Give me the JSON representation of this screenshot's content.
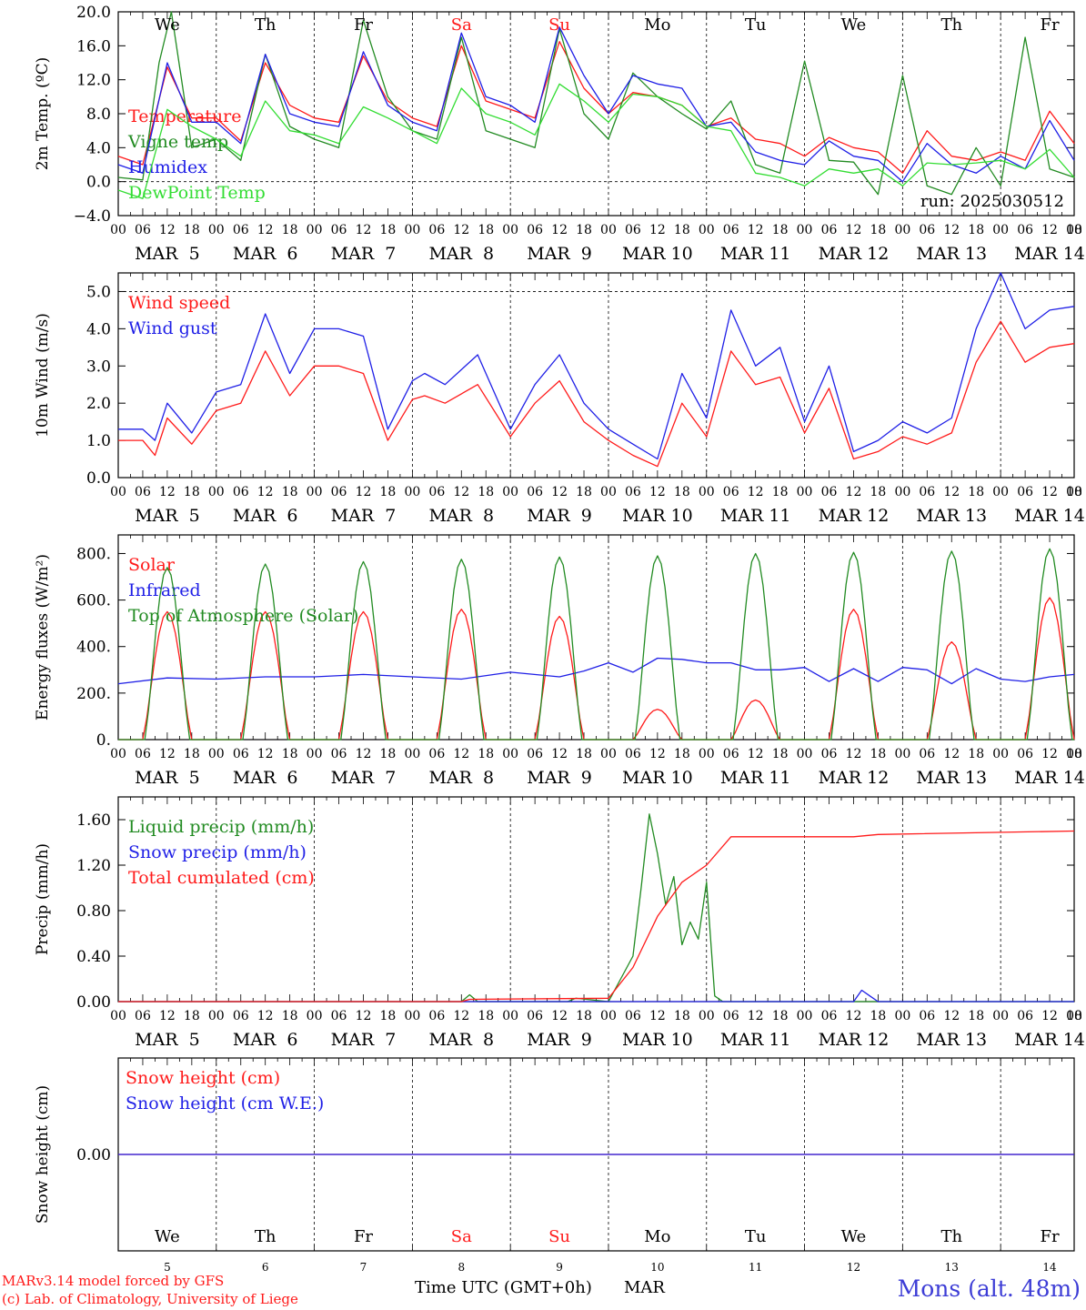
{
  "colors": {
    "red": "#ff1a1a",
    "dkgreen": "#228b22",
    "blue": "#1f1fe6",
    "ltgreen": "#33dd33",
    "brand_blue": "#3d3dd6"
  },
  "x_axis": {
    "hour_ticks": [
      "00",
      "06",
      "12",
      "18"
    ],
    "last_tick": "00",
    "date_labels": [
      "MAR  5",
      "MAR  6",
      "MAR  7",
      "MAR  8",
      "MAR  9",
      "MAR 10",
      "MAR 11",
      "MAR 12",
      "MAR 13",
      "MAR 14"
    ],
    "weekdays": [
      "We",
      "Th",
      "Fr",
      "Sa",
      "Su",
      "Mo",
      "Tu",
      "We",
      "Th",
      "Fr"
    ],
    "weekday_colors": [
      "#000000",
      "#000000",
      "#000000",
      "#ff1a1a",
      "#ff1a1a",
      "#000000",
      "#000000",
      "#000000",
      "#000000",
      "#000000"
    ],
    "day_numbers": [
      "5",
      "6",
      "7",
      "8",
      "9",
      "10",
      "11",
      "12",
      "13",
      "14"
    ],
    "axis_title": "Time UTC (GMT+0h)",
    "month": "MAR"
  },
  "footer": {
    "model_line": "MARv3.14 model forced by GFS",
    "copyright_line": "(c) Lab. of Climatology, University of Liege",
    "station": "Mons (alt. 48m)"
  },
  "chart_data": [
    {
      "id": "temp",
      "type": "line",
      "ylabel": "2m Temp. (ºC)",
      "ylim": [
        -4,
        20
      ],
      "yticks": [
        "20.0",
        "16.0",
        "12.0",
        "8.0",
        "4.0",
        "0.0",
        "−4.0"
      ],
      "annotation": "run: 2025030512",
      "series": [
        {
          "name": "Temperature",
          "color": "#ff1a1a",
          "x_hours": [
            0,
            6,
            12,
            18,
            24,
            30,
            36,
            42,
            48,
            54,
            60,
            66,
            72,
            78,
            84,
            90,
            96,
            102,
            108,
            114,
            120,
            126,
            132,
            138,
            144,
            150,
            156,
            162,
            168,
            174,
            180,
            186,
            192,
            198,
            204,
            210,
            216,
            222,
            228,
            234
          ],
          "values": [
            3,
            2,
            13.5,
            7.5,
            7.5,
            4.8,
            14,
            9,
            7.5,
            7,
            14.8,
            9.5,
            7.5,
            6.5,
            16,
            9.5,
            8.5,
            7.5,
            16.5,
            11,
            8,
            10.5,
            10,
            9,
            6.5,
            7.5,
            5,
            4.5,
            3,
            5.2,
            4,
            3.5,
            1,
            6,
            3,
            2.5,
            3.5,
            2.5,
            8.3,
            4.5
          ]
        },
        {
          "name": "Vigne temp",
          "color": "#228b22",
          "x_hours": [
            0,
            6,
            10,
            13,
            18,
            24,
            30,
            36,
            42,
            48,
            54,
            60,
            66,
            72,
            78,
            84,
            90,
            96,
            102,
            108,
            114,
            120,
            126,
            132,
            138,
            144,
            150,
            156,
            162,
            168,
            174,
            180,
            186,
            192,
            198,
            204,
            210,
            216,
            222,
            228,
            234
          ],
          "values": [
            0.5,
            0.2,
            14,
            20,
            4,
            5,
            2.5,
            15,
            6.5,
            5,
            4,
            19,
            10,
            6,
            5,
            17,
            6,
            5,
            4,
            18,
            8,
            5,
            12.8,
            10,
            8,
            6.2,
            9.5,
            2,
            1,
            14.2,
            2.5,
            2.3,
            -1.5,
            12.5,
            -0.5,
            -1.5,
            4,
            -0.5,
            17,
            1.5,
            0.5
          ]
        },
        {
          "name": "Humidex",
          "color": "#1f1fe6",
          "x_hours": [
            0,
            6,
            12,
            18,
            24,
            30,
            36,
            42,
            48,
            54,
            60,
            66,
            72,
            78,
            84,
            90,
            96,
            102,
            108,
            114,
            120,
            126,
            132,
            138,
            144,
            150,
            156,
            162,
            168,
            174,
            180,
            186,
            192,
            198,
            204,
            210,
            216,
            222,
            228,
            234
          ],
          "values": [
            2,
            1,
            14,
            7,
            7,
            4.5,
            15,
            8,
            7,
            6.5,
            15.3,
            9,
            7,
            6,
            17.5,
            10,
            9,
            7,
            18.2,
            12.5,
            8,
            12.5,
            11.5,
            11,
            6.5,
            7,
            3.5,
            2.5,
            2,
            4.8,
            3,
            2.5,
            0,
            4.5,
            2,
            1,
            3,
            1.5,
            7.2,
            2.5
          ]
        },
        {
          "name": "DewPoint Temp",
          "color": "#33dd33",
          "x_hours": [
            0,
            6,
            12,
            18,
            24,
            30,
            36,
            42,
            48,
            54,
            60,
            66,
            72,
            78,
            84,
            90,
            96,
            102,
            108,
            114,
            120,
            126,
            132,
            138,
            144,
            150,
            156,
            162,
            168,
            174,
            180,
            186,
            192,
            198,
            204,
            210,
            216,
            222,
            228,
            234
          ],
          "values": [
            -1,
            -2,
            8.5,
            6.5,
            5,
            3,
            9.5,
            6,
            5.5,
            4.5,
            8.8,
            7.5,
            6,
            4.5,
            11,
            8,
            7,
            5.5,
            11.5,
            9.5,
            7,
            10.3,
            10,
            9,
            6.5,
            6,
            1,
            0.5,
            -0.5,
            1.5,
            1,
            1.5,
            -0.5,
            2.2,
            2,
            2.2,
            2.5,
            1.5,
            3.8,
            0.5
          ]
        }
      ]
    },
    {
      "id": "wind",
      "type": "line",
      "ylabel": "10m Wind (m/s)",
      "ylim": [
        0,
        5.5
      ],
      "yticks": [
        "5.0",
        "4.0",
        "3.0",
        "2.0",
        "1.0",
        "0.0"
      ],
      "series": [
        {
          "name": "Wind speed",
          "color": "#ff1a1a",
          "x_hours": [
            0,
            6,
            9,
            12,
            18,
            24,
            30,
            36,
            42,
            48,
            54,
            60,
            66,
            72,
            75,
            80,
            88,
            96,
            102,
            108,
            114,
            120,
            126,
            132,
            138,
            144,
            150,
            156,
            162,
            168,
            174,
            180,
            186,
            192,
            198,
            204,
            210,
            216,
            222,
            228,
            234
          ],
          "values": [
            1,
            1,
            0.6,
            1.6,
            0.9,
            1.8,
            2,
            3.4,
            2.2,
            3,
            3,
            2.8,
            1,
            2.1,
            2.2,
            2,
            2.5,
            1.1,
            2,
            2.6,
            1.5,
            1,
            0.6,
            0.3,
            2,
            1.1,
            3.4,
            2.5,
            2.7,
            1.2,
            2.4,
            0.5,
            0.7,
            1.1,
            0.9,
            1.2,
            3.1,
            4.2,
            3.1,
            3.5,
            3.6
          ]
        },
        {
          "name": "Wind gust",
          "color": "#1f1fe6",
          "x_hours": [
            0,
            6,
            9,
            12,
            18,
            24,
            30,
            36,
            42,
            48,
            54,
            60,
            66,
            72,
            75,
            80,
            88,
            96,
            102,
            108,
            114,
            120,
            126,
            132,
            138,
            144,
            150,
            156,
            162,
            168,
            174,
            180,
            186,
            192,
            198,
            204,
            210,
            216,
            222,
            228,
            234
          ],
          "values": [
            1.3,
            1.3,
            1,
            2,
            1.2,
            2.3,
            2.5,
            4.4,
            2.8,
            4,
            4,
            3.8,
            1.3,
            2.6,
            2.8,
            2.5,
            3.3,
            1.3,
            2.5,
            3.3,
            2,
            1.3,
            0.9,
            0.5,
            2.8,
            1.6,
            4.5,
            3,
            3.5,
            1.5,
            3,
            0.7,
            1,
            1.5,
            1.2,
            1.6,
            4,
            5.5,
            4,
            4.5,
            4.6
          ]
        }
      ]
    },
    {
      "id": "energy",
      "type": "line",
      "ylabel": "Energy fluxes (W/m²)",
      "ylim": [
        0,
        880
      ],
      "yticks": [
        "800.",
        "600.",
        "400.",
        "200.",
        "0."
      ],
      "series": [
        {
          "name": "Solar",
          "color": "#ff1a1a",
          "daily_peak": [
            550,
            550,
            550,
            560,
            530,
            130,
            170,
            560,
            420,
            610
          ],
          "daylight_hours": [
            6,
            18
          ]
        },
        {
          "name": "Infrared",
          "color": "#1f1fe6",
          "x_hours": [
            0,
            12,
            24,
            36,
            48,
            60,
            72,
            84,
            96,
            108,
            114,
            120,
            126,
            132,
            138,
            144,
            150,
            156,
            162,
            168,
            174,
            180,
            186,
            192,
            198,
            204,
            210,
            216,
            222,
            228,
            234
          ],
          "values": [
            240,
            265,
            260,
            270,
            270,
            280,
            270,
            260,
            290,
            270,
            295,
            330,
            290,
            350,
            345,
            330,
            330,
            300,
            300,
            310,
            250,
            305,
            250,
            310,
            300,
            240,
            305,
            260,
            250,
            270,
            280
          ]
        },
        {
          "name": "Top of Atmosphere (Solar)",
          "color": "#228b22",
          "daily_peak": [
            740,
            755,
            765,
            775,
            785,
            790,
            800,
            805,
            810,
            820
          ],
          "daylight_hours": [
            6.5,
            17.5
          ]
        }
      ]
    },
    {
      "id": "precip",
      "type": "line",
      "ylabel": "Precip (mm/h)",
      "ylim": [
        0,
        1.8
      ],
      "yticks": [
        "1.60",
        "1.20",
        "0.80",
        "0.40",
        "0.00"
      ],
      "series": [
        {
          "name": "Liquid precip (mm/h)",
          "color": "#228b22",
          "x_hours": [
            0,
            84,
            86,
            88,
            90,
            110,
            112,
            120,
            126,
            128,
            130,
            132,
            134,
            136,
            138,
            140,
            142,
            144,
            146,
            148,
            150,
            234
          ],
          "values": [
            0,
            0,
            0.06,
            0,
            0,
            0,
            0.03,
            0,
            0.4,
            1,
            1.65,
            1.3,
            0.85,
            1.1,
            0.5,
            0.7,
            0.55,
            1.05,
            0.05,
            0,
            0,
            0
          ]
        },
        {
          "name": "Snow precip (mm/h)",
          "color": "#1f1fe6",
          "x_hours": [
            0,
            180,
            182,
            184,
            186,
            234
          ],
          "values": [
            0,
            0,
            0.1,
            0.05,
            0,
            0
          ]
        },
        {
          "name": "Total cumulated (cm)",
          "color": "#ff1a1a",
          "x_hours": [
            0,
            84,
            86,
            120,
            126,
            132,
            138,
            144,
            150,
            180,
            186,
            234
          ],
          "values": [
            0,
            0,
            0.02,
            0.03,
            0.3,
            0.75,
            1.05,
            1.2,
            1.45,
            1.45,
            1.47,
            1.5
          ]
        }
      ]
    },
    {
      "id": "snow",
      "type": "line",
      "ylabel": "Snow height (cm)",
      "ylim": [
        -1,
        1
      ],
      "yticks": [
        "0.00"
      ],
      "series": [
        {
          "name": "Snow height (cm)",
          "color": "#ff1a1a",
          "x_hours": [
            0,
            234
          ],
          "values": [
            0,
            0
          ]
        },
        {
          "name": "Snow height (cm W.E.)",
          "color": "#1f1fe6",
          "x_hours": [
            0,
            234
          ],
          "values": [
            0,
            0
          ]
        }
      ]
    }
  ]
}
